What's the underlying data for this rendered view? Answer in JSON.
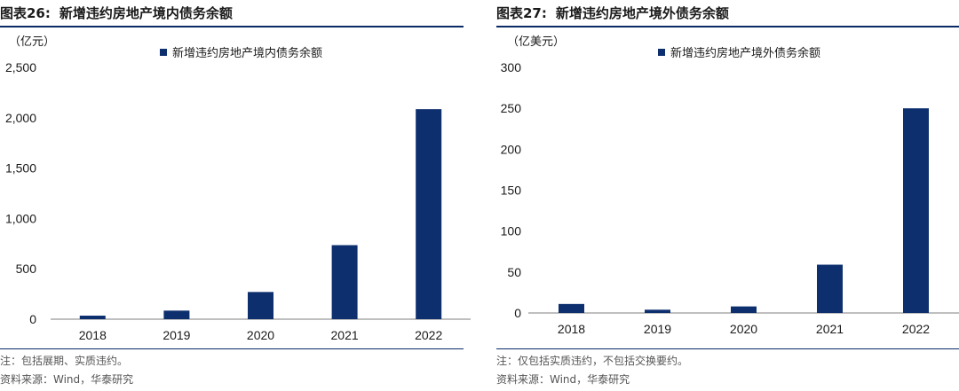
{
  "panels": [
    {
      "title_num": "图表26:",
      "title_text": "新增违约房地产境内债务余额",
      "note": "注：包括展期、实质违约。",
      "source": "资料来源：Wind，华泰研究"
    },
    {
      "title_num": "图表27:",
      "title_text": "新增违约房地产境外债务余额",
      "note": "注：仅包括实质违约，不包括交换要约。",
      "source": "资料来源：Wind，华泰研究"
    }
  ],
  "colors": {
    "bar": "#0d2f6e",
    "rule": "#0a2a66",
    "axis": "#7f7f7f"
  },
  "chart_data": [
    {
      "type": "bar",
      "unit": "（亿元）",
      "categories": [
        "2018",
        "2019",
        "2020",
        "2021",
        "2022"
      ],
      "series": [
        {
          "name": "新增违约房地产境内债务余额",
          "values": [
            35,
            85,
            270,
            735,
            2085
          ]
        }
      ],
      "ylim": [
        0,
        2500
      ],
      "yticks": [
        0,
        500,
        1000,
        1500,
        2000,
        2500
      ],
      "ytick_labels": [
        "0",
        "500",
        "1,000",
        "1,500",
        "2,000",
        "2,500"
      ],
      "grid": false,
      "legend": "top-right"
    },
    {
      "type": "bar",
      "unit": "（亿美元）",
      "categories": [
        "2018",
        "2019",
        "2020",
        "2021",
        "2022"
      ],
      "series": [
        {
          "name": "新增违约房地产境外债务余额",
          "values": [
            11,
            4,
            8,
            59,
            250
          ]
        }
      ],
      "ylim": [
        0,
        300
      ],
      "yticks": [
        0,
        50,
        100,
        150,
        200,
        250,
        300
      ],
      "ytick_labels": [
        "0",
        "50",
        "100",
        "150",
        "200",
        "250",
        "300"
      ],
      "grid": false,
      "legend": "top-right"
    }
  ]
}
